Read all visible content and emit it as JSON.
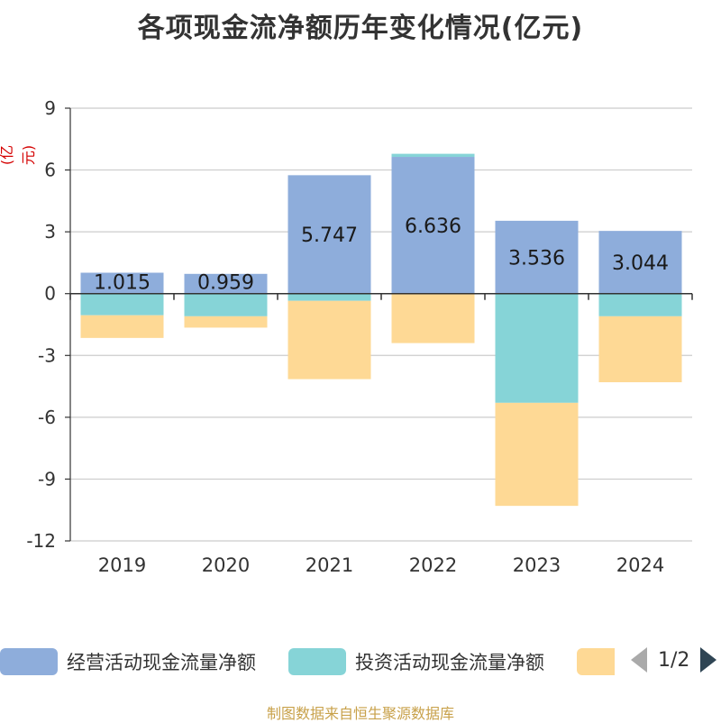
{
  "title": "各项现金流净额历年变化情况(亿元)",
  "unit_label": "(亿元)",
  "source": "制图数据来自恒生聚源数据库",
  "pager": "1/2",
  "chart_data": {
    "type": "bar",
    "stacked": true,
    "categories": [
      "2019",
      "2020",
      "2021",
      "2022",
      "2023",
      "2024"
    ],
    "ylim": [
      -12,
      9
    ],
    "yticks": [
      9,
      6,
      3,
      0,
      -3,
      -6,
      -9,
      -12
    ],
    "grid": true,
    "legend_position": "bottom",
    "series": [
      {
        "name": "经营活动现金流量净额",
        "color": "#8eaddb",
        "values": [
          1.015,
          0.959,
          5.747,
          6.636,
          3.536,
          3.044
        ],
        "labels": [
          "1.015",
          "0.959",
          "5.747",
          "6.636",
          "3.536",
          "3.044"
        ]
      },
      {
        "name": "投资活动现金流量净额",
        "color": "#86d4d7",
        "values": [
          -1.05,
          -1.1,
          -0.35,
          0.15,
          -5.3,
          -1.1
        ]
      },
      {
        "name": "",
        "color": "#fed995",
        "values": [
          -1.1,
          -0.55,
          -3.8,
          -2.4,
          -5.0,
          -3.2
        ]
      }
    ]
  }
}
